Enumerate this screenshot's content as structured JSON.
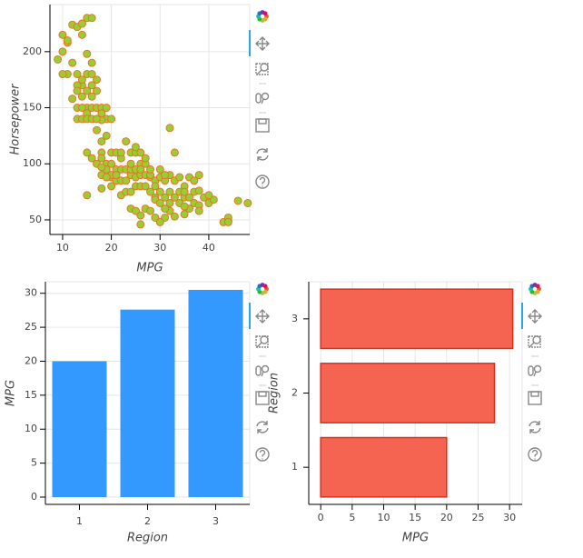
{
  "chart_data": [
    {
      "type": "scatter",
      "x_label": "MPG",
      "y_label": "Horsepower",
      "color": "#9acd32",
      "line_color": "#e8742a",
      "grid": true,
      "xlim": [
        7.4,
        48.4
      ],
      "ylim": [
        37,
        242
      ],
      "xticks": [
        10,
        20,
        30,
        40
      ],
      "yticks": [
        50,
        100,
        150,
        200
      ],
      "x": [
        10,
        11,
        12,
        13,
        14,
        15,
        16,
        10,
        11,
        12,
        13,
        14,
        14,
        15,
        15,
        16,
        14,
        13,
        13,
        14,
        15,
        16,
        17,
        16,
        15,
        13,
        14,
        15,
        16,
        17,
        14,
        13,
        14,
        15,
        16,
        17,
        18,
        19,
        18,
        16,
        17,
        18,
        19,
        20,
        12,
        11,
        9,
        10,
        17,
        18,
        19,
        20,
        21,
        22,
        18,
        19,
        20,
        21,
        22,
        23,
        24,
        25,
        26,
        22,
        23,
        24,
        25,
        26,
        18,
        19,
        20,
        21,
        18,
        17,
        16,
        15,
        18,
        20,
        22,
        24,
        25,
        26,
        27,
        28,
        29,
        28,
        27,
        15,
        18,
        20,
        22,
        23,
        24,
        25,
        26,
        27,
        28,
        29,
        30,
        31,
        32,
        33,
        34,
        35,
        36,
        37,
        38,
        39,
        40,
        41,
        43,
        44,
        44,
        44,
        46,
        48,
        30,
        31,
        32,
        33,
        34,
        35,
        36,
        37,
        38,
        36,
        33,
        32,
        29,
        27,
        26,
        29,
        31,
        33,
        30,
        35,
        37,
        25,
        27,
        23,
        21,
        19,
        24,
        26,
        25,
        28,
        32,
        35,
        38,
        34,
        40,
        31,
        29,
        30,
        32,
        35,
        38,
        24,
        26,
        28,
        30,
        31
      ],
      "y": [
        215,
        208,
        224,
        222,
        225,
        230,
        230,
        200,
        210,
        190,
        180,
        225,
        215,
        198,
        180,
        190,
        170,
        170,
        165,
        175,
        165,
        180,
        175,
        170,
        150,
        150,
        160,
        145,
        160,
        165,
        150,
        140,
        140,
        140,
        150,
        150,
        150,
        140,
        139,
        140,
        140,
        145,
        150,
        140,
        158,
        180,
        193,
        180,
        130,
        120,
        125,
        110,
        110,
        105,
        110,
        100,
        100,
        95,
        95,
        95,
        90,
        88,
        90,
        110,
        120,
        110,
        110,
        100,
        105,
        95,
        88,
        85,
        90,
        100,
        105,
        110,
        97,
        90,
        85,
        95,
        95,
        95,
        90,
        88,
        85,
        90,
        100,
        72,
        78,
        80,
        72,
        75,
        75,
        80,
        80,
        80,
        75,
        80,
        75,
        70,
        65,
        70,
        65,
        70,
        60,
        65,
        63,
        70,
        65,
        68,
        48,
        49,
        52,
        48,
        67,
        65,
        88,
        85,
        90,
        85,
        88,
        80,
        88,
        85,
        90,
        70,
        110,
        132,
        70,
        60,
        46,
        52,
        52,
        53,
        48,
        62,
        75,
        115,
        105,
        85,
        90,
        88,
        60,
        54,
        58,
        58,
        58,
        55,
        58,
        75,
        72,
        60,
        68,
        65,
        75,
        75,
        76,
        100,
        110,
        95,
        95,
        90
      ]
    },
    {
      "type": "bar",
      "x_label": "Region",
      "y_label": "MPG",
      "color": "#3399ff",
      "categories": [
        "1",
        "2",
        "3"
      ],
      "values": [
        20.0,
        27.6,
        30.5
      ],
      "ylim": [
        -1.07,
        31.7
      ],
      "yticks": [
        0,
        5,
        10,
        15,
        20,
        25,
        30
      ],
      "grid": true
    },
    {
      "type": "hbar",
      "x_label": "MPG",
      "y_label": "Region",
      "color": "#f46450",
      "line_color": "#d7301f",
      "categories": [
        "1",
        "2",
        "3"
      ],
      "values": [
        20.0,
        27.6,
        30.5
      ],
      "xlim": [
        -1.9,
        32.0
      ],
      "xticks": [
        0,
        5,
        10,
        15,
        20,
        25,
        30
      ],
      "grid": true
    }
  ]
}
